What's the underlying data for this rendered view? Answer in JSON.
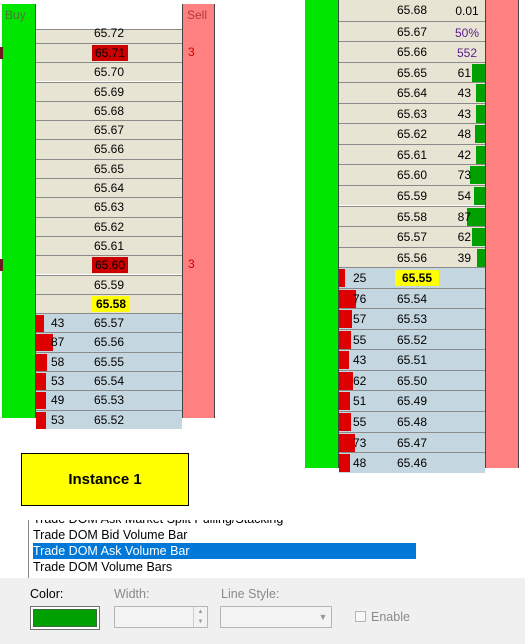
{
  "dom1": {
    "buy_header": "Buy",
    "sell_header": "Sell",
    "rows": [
      {
        "price": "65.72",
        "type": "ask",
        "style": "cut"
      },
      {
        "price": "65.71",
        "type": "ask",
        "style": "fill",
        "sell": "3"
      },
      {
        "price": "65.70",
        "type": "ask"
      },
      {
        "price": "65.69",
        "type": "ask"
      },
      {
        "price": "65.68",
        "type": "ask"
      },
      {
        "price": "65.67",
        "type": "ask"
      },
      {
        "price": "65.66",
        "type": "ask"
      },
      {
        "price": "65.65",
        "type": "ask"
      },
      {
        "price": "65.64",
        "type": "ask"
      },
      {
        "price": "65.63",
        "type": "ask"
      },
      {
        "price": "65.62",
        "type": "ask"
      },
      {
        "price": "65.61",
        "type": "ask"
      },
      {
        "price": "65.60",
        "type": "ask",
        "style": "fill",
        "sell": "3"
      },
      {
        "price": "65.59",
        "type": "ask"
      },
      {
        "price": "65.58",
        "type": "ask",
        "style": "hl"
      },
      {
        "price": "65.57",
        "type": "bid",
        "bid": "43"
      },
      {
        "price": "65.56",
        "type": "bid",
        "bid": "87"
      },
      {
        "price": "65.55",
        "type": "bid",
        "bid": "58"
      },
      {
        "price": "65.54",
        "type": "bid",
        "bid": "53"
      },
      {
        "price": "65.53",
        "type": "bid",
        "bid": "49"
      },
      {
        "price": "65.52",
        "type": "bid",
        "bid": "53"
      }
    ]
  },
  "dom2": {
    "rows": [
      {
        "price": "65.68",
        "type": "ask",
        "stat": "0.01",
        "stat_dark": true
      },
      {
        "price": "65.67",
        "type": "ask",
        "stat": "50%"
      },
      {
        "price": "65.66",
        "type": "ask",
        "stat": "552"
      },
      {
        "price": "65.65",
        "type": "ask",
        "ask": "61"
      },
      {
        "price": "65.64",
        "type": "ask",
        "ask": "43"
      },
      {
        "price": "65.63",
        "type": "ask",
        "ask": "43"
      },
      {
        "price": "65.62",
        "type": "ask",
        "ask": "48"
      },
      {
        "price": "65.61",
        "type": "ask",
        "ask": "42"
      },
      {
        "price": "65.60",
        "type": "ask",
        "ask": "73"
      },
      {
        "price": "65.59",
        "type": "ask",
        "ask": "54"
      },
      {
        "price": "65.58",
        "type": "ask",
        "ask": "87"
      },
      {
        "price": "65.57",
        "type": "ask",
        "ask": "62"
      },
      {
        "price": "65.56",
        "type": "ask",
        "ask": "39"
      },
      {
        "price": "65.55",
        "type": "bid",
        "bid": "25",
        "style": "hl"
      },
      {
        "price": "65.54",
        "type": "bid",
        "bid": "76"
      },
      {
        "price": "65.53",
        "type": "bid",
        "bid": "57"
      },
      {
        "price": "65.52",
        "type": "bid",
        "bid": "55"
      },
      {
        "price": "65.51",
        "type": "bid",
        "bid": "43"
      },
      {
        "price": "65.50",
        "type": "bid",
        "bid": "62"
      },
      {
        "price": "65.49",
        "type": "bid",
        "bid": "51"
      },
      {
        "price": "65.48",
        "type": "bid",
        "bid": "55"
      },
      {
        "price": "65.47",
        "type": "bid",
        "bid": "73"
      },
      {
        "price": "65.46",
        "type": "bid",
        "bid": "48"
      }
    ]
  },
  "instance_label": "Instance 1",
  "plot_list": {
    "items": [
      "Trade DOM Ask Market Split Pulling/Stacking",
      "Trade DOM Bid Volume Bar",
      "Trade DOM Ask Volume Bar",
      "Trade DOM Volume Bars"
    ],
    "selected_index": 2
  },
  "properties": {
    "color_label": "Color:",
    "width_label": "Width:",
    "line_style_label": "Line Style:",
    "enable_label": "Enable",
    "color_value": "#00a000"
  },
  "colors": {
    "buy_column": "#00e600",
    "sell_column": "#ff8080",
    "ask_row": "#e8e4d4",
    "bid_row": "#c4d6e0",
    "last_price": "#ffff00",
    "bid_bar": "#dd0000",
    "ask_bar": "#00a000",
    "selection": "#0078d7"
  }
}
